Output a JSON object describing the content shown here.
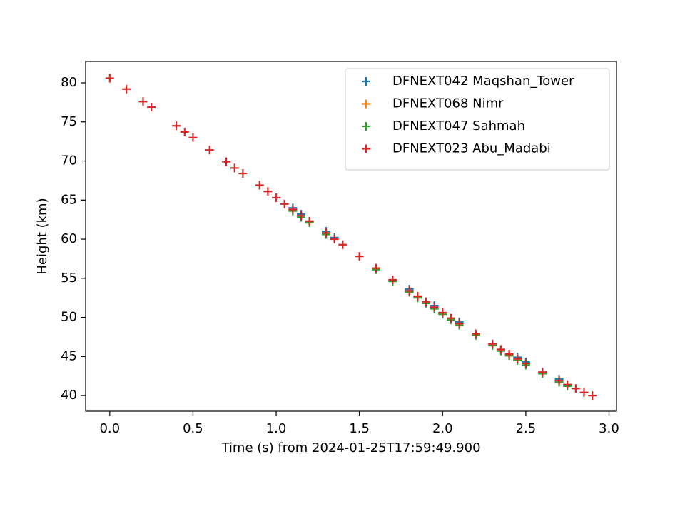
{
  "chart_data": {
    "type": "scatter",
    "x_label": "Time (s) from 2024-01-25T17:59:49.900",
    "y_label": "Height (km)",
    "xlim": [
      -0.145,
      3.045
    ],
    "ylim": [
      38.0,
      82.74
    ],
    "xticks": [
      {
        "value": 0,
        "label": "0.0"
      },
      0.5,
      {
        "value": 1,
        "label": "1.0"
      },
      1.5,
      {
        "value": 2,
        "label": "2.0"
      },
      2.5,
      {
        "value": 3,
        "label": "3.0"
      }
    ],
    "yticks": [
      40,
      45,
      50,
      55,
      60,
      65,
      70,
      75,
      80
    ],
    "legend": "upper right",
    "series": [
      {
        "name": "DFNEXT042 Maqshan_Tower",
        "color": "#1f77b4",
        "x": [
          1.1,
          1.15,
          1.3,
          1.35,
          1.8,
          1.95,
          2.1,
          2.45,
          2.5,
          2.7
        ],
        "values": [
          64.0,
          63.2,
          61.0,
          60.2,
          53.6,
          51.5,
          49.4,
          44.9,
          44.3,
          42.1
        ]
      },
      {
        "name": "DFNEXT068 Nimr",
        "color": "#ff7f0e",
        "x": [
          1.1,
          1.3,
          1.6,
          1.8,
          2.0,
          2.2,
          2.4,
          2.6
        ],
        "values": [
          63.7,
          60.7,
          56.2,
          53.3,
          50.5,
          47.8,
          45.2,
          42.9
        ]
      },
      {
        "name": "DFNEXT047 Sahmah",
        "color": "#2ca02c",
        "x": [
          1.1,
          1.15,
          1.2,
          1.3,
          1.6,
          1.7,
          1.8,
          1.85,
          1.9,
          1.95,
          2.0,
          2.05,
          2.1,
          2.2,
          2.3,
          2.35,
          2.4,
          2.45,
          2.5,
          2.6,
          2.7,
          2.75
        ],
        "values": [
          63.6,
          62.8,
          62.1,
          60.6,
          56.1,
          54.6,
          53.2,
          52.5,
          51.8,
          51.1,
          50.4,
          49.7,
          49.0,
          47.7,
          46.4,
          45.7,
          45.1,
          44.5,
          43.9,
          42.8,
          41.7,
          41.2
        ]
      },
      {
        "name": "DFNEXT023 Abu_Madabi",
        "color": "#d62728",
        "x": [
          0.0,
          0.1,
          0.2,
          0.25,
          0.4,
          0.45,
          0.5,
          0.6,
          0.7,
          0.75,
          0.8,
          0.9,
          0.95,
          1.0,
          1.05,
          1.1,
          1.15,
          1.2,
          1.3,
          1.35,
          1.4,
          1.5,
          1.6,
          1.7,
          1.8,
          1.85,
          1.9,
          1.95,
          2.0,
          2.05,
          2.1,
          2.2,
          2.3,
          2.35,
          2.4,
          2.45,
          2.5,
          2.6,
          2.7,
          2.75,
          2.8,
          2.85,
          2.9
        ],
        "values": [
          80.6,
          79.2,
          77.6,
          76.9,
          74.5,
          73.7,
          73.0,
          71.4,
          69.9,
          69.1,
          68.4,
          66.9,
          66.1,
          65.3,
          64.5,
          63.8,
          63.0,
          62.3,
          60.8,
          60.0,
          59.3,
          57.8,
          56.3,
          54.8,
          53.4,
          52.7,
          52.0,
          51.3,
          50.6,
          49.9,
          49.2,
          47.9,
          46.6,
          45.9,
          45.3,
          44.7,
          44.1,
          43.0,
          41.9,
          41.4,
          40.9,
          40.4,
          40.0
        ]
      }
    ]
  }
}
